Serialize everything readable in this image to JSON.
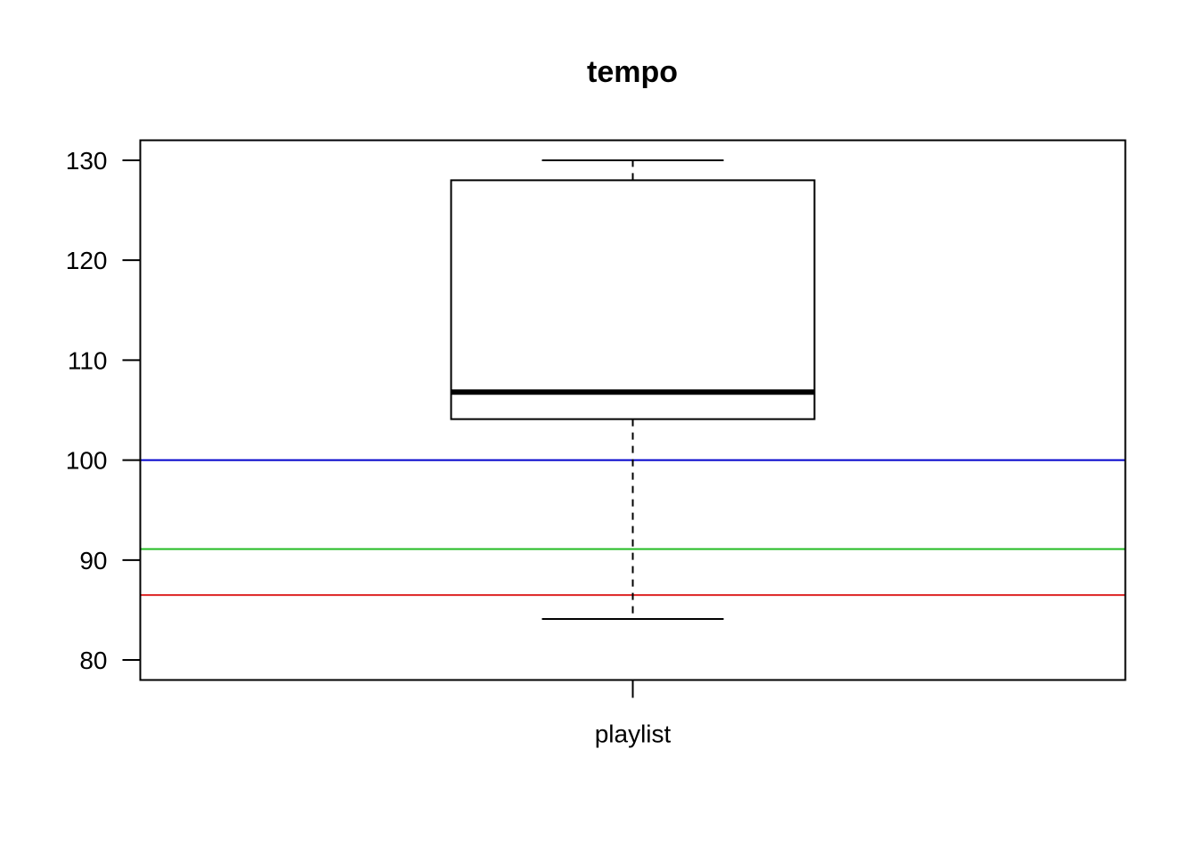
{
  "chart_data": {
    "type": "box",
    "title": "tempo",
    "xlabel": "",
    "ylabel": "",
    "categories": [
      "playlist"
    ],
    "y_ticks": [
      "80",
      "90",
      "100",
      "110",
      "120",
      "130"
    ],
    "ylim": [
      78,
      132
    ],
    "grid": false,
    "boxes": [
      {
        "category": "playlist",
        "whisker_low": 84.1,
        "q1": 104.1,
        "median": 106.8,
        "q3": 128,
        "whisker_high": 130
      }
    ],
    "reference_lines": [
      {
        "value": 100,
        "color": "#0000cc"
      },
      {
        "value": 91.1,
        "color": "#22bb22"
      },
      {
        "value": 86.5,
        "color": "#dd2222"
      }
    ]
  }
}
